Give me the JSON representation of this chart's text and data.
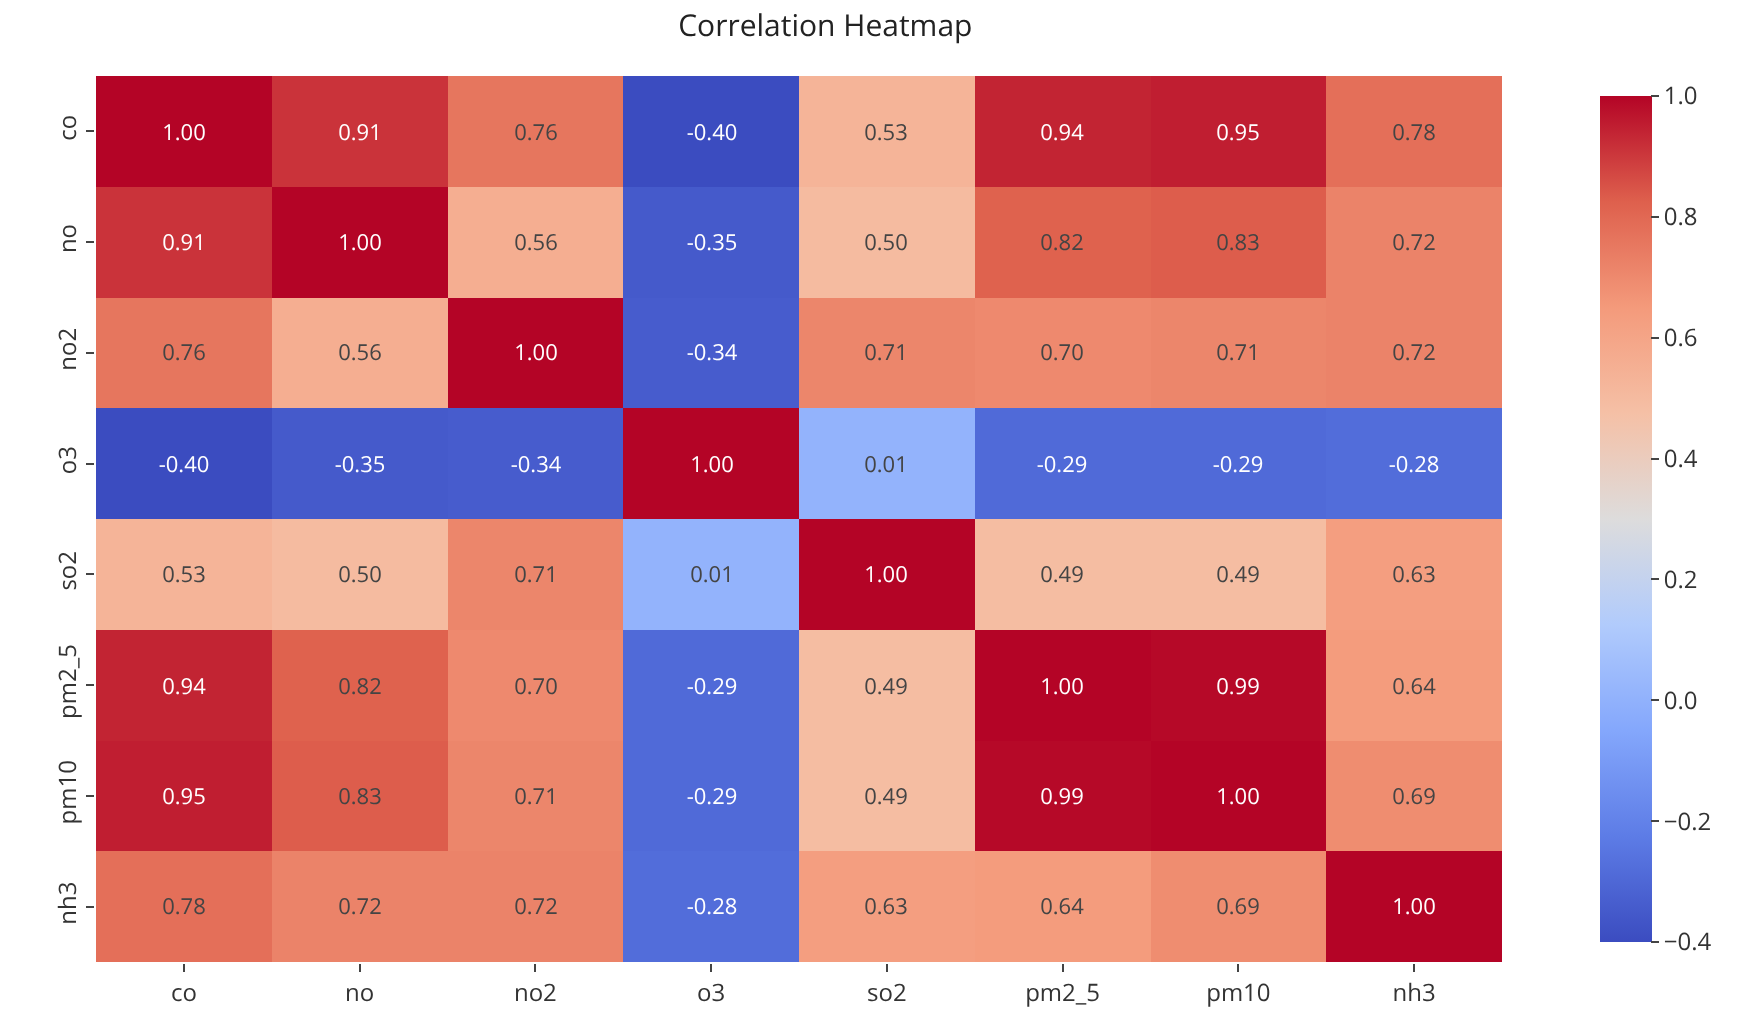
{
  "chart_data": {
    "type": "heatmap",
    "title": "Correlation Heatmap",
    "categories": [
      "co",
      "no",
      "no2",
      "o3",
      "so2",
      "pm2_5",
      "pm10",
      "nh3"
    ],
    "y_categories": [
      "co",
      "no",
      "no2",
      "o3",
      "so2",
      "pm2_5",
      "pm10",
      "nh3"
    ],
    "cells": [
      [
        1.0,
        0.91,
        0.76,
        -0.4,
        0.53,
        0.94,
        0.95,
        0.78
      ],
      [
        0.91,
        1.0,
        0.56,
        -0.35,
        0.5,
        0.82,
        0.83,
        0.72
      ],
      [
        0.76,
        0.56,
        1.0,
        -0.34,
        0.71,
        0.7,
        0.71,
        0.72
      ],
      [
        -0.4,
        -0.35,
        -0.34,
        1.0,
        0.01,
        -0.29,
        -0.29,
        -0.28
      ],
      [
        0.53,
        0.5,
        0.71,
        0.01,
        1.0,
        0.49,
        0.49,
        0.63
      ],
      [
        0.94,
        0.82,
        0.7,
        -0.29,
        0.49,
        1.0,
        0.99,
        0.64
      ],
      [
        0.95,
        0.83,
        0.71,
        -0.29,
        0.49,
        0.99,
        1.0,
        0.69
      ],
      [
        0.78,
        0.72,
        0.72,
        -0.28,
        0.63,
        0.64,
        0.69,
        1.0
      ]
    ],
    "cell_labels": [
      [
        "1.00",
        "0.91",
        "0.76",
        "-0.40",
        "0.53",
        "0.94",
        "0.95",
        "0.78"
      ],
      [
        "0.91",
        "1.00",
        "0.56",
        "-0.35",
        "0.50",
        "0.82",
        "0.83",
        "0.72"
      ],
      [
        "0.76",
        "0.56",
        "1.00",
        "-0.34",
        "0.71",
        "0.70",
        "0.71",
        "0.72"
      ],
      [
        "-0.40",
        "-0.35",
        "-0.34",
        "1.00",
        "0.01",
        "-0.29",
        "-0.29",
        "-0.28"
      ],
      [
        "0.53",
        "0.50",
        "0.71",
        "0.01",
        "1.00",
        "0.49",
        "0.49",
        "0.63"
      ],
      [
        "0.94",
        "0.82",
        "0.70",
        "-0.29",
        "0.49",
        "1.00",
        "0.99",
        "0.64"
      ],
      [
        "0.95",
        "0.83",
        "0.71",
        "-0.29",
        "0.49",
        "0.99",
        "1.00",
        "0.69"
      ],
      [
        "0.78",
        "0.72",
        "0.72",
        "-0.28",
        "0.63",
        "0.64",
        "0.69",
        "1.00"
      ]
    ],
    "clim": [
      -0.4,
      1.0
    ],
    "cticks": [
      {
        "value": -0.4,
        "label": "−0.4"
      },
      {
        "value": -0.2,
        "label": "−0.2"
      },
      {
        "value": 0,
        "label": "0.0"
      },
      {
        "value": 0.2,
        "label": "0.2"
      },
      {
        "value": 0.4,
        "label": "0.4"
      },
      {
        "value": 0.6,
        "label": "0.6"
      },
      {
        "value": 0.8,
        "label": "0.8"
      },
      {
        "value": 1.0,
        "label": "1.0"
      }
    ]
  }
}
